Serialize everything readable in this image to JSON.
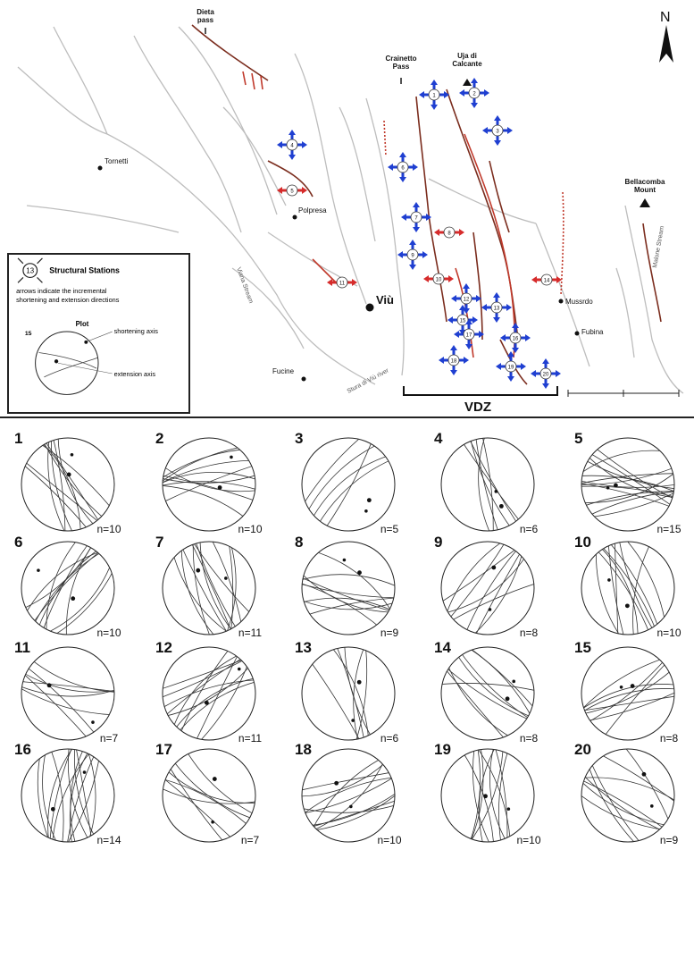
{
  "map": {
    "north_label": "N",
    "places": [
      {
        "id": "dieta",
        "name": "Dieta\npass"
      },
      {
        "id": "crainetto",
        "name": "Crainetto\nPass"
      },
      {
        "id": "uja",
        "name": "Uja di\nCalcante"
      },
      {
        "id": "tornetti",
        "name": "Tornetti"
      },
      {
        "id": "polpresa",
        "name": "Polpresa"
      },
      {
        "id": "viu",
        "name": "Viù"
      },
      {
        "id": "fucine",
        "name": "Fucine"
      },
      {
        "id": "mussrdo",
        "name": "Mussrdo"
      },
      {
        "id": "fubina",
        "name": "Fubina"
      },
      {
        "id": "bellacomba",
        "name": "Bellacomba\nMount"
      }
    ],
    "river_labels": [
      "Viana Stream",
      "Stura di Viù river",
      "Malone Stream"
    ],
    "vdz_label": "VDZ"
  },
  "legend": {
    "station_symbol": "13",
    "title": "Structural Stations",
    "description_line1": "arrows indicate the incremental",
    "description_line2": "shortening and extension directions",
    "plot_title": "Plot",
    "plot_number": "15",
    "shortening_label": "shortening axis",
    "extension_label": "extension axis"
  },
  "stations": [
    {
      "id": "1",
      "n": "n=10"
    },
    {
      "id": "2",
      "n": "n=10"
    },
    {
      "id": "3",
      "n": "n=5"
    },
    {
      "id": "4",
      "n": "n=6"
    },
    {
      "id": "5",
      "n": "n=15"
    },
    {
      "id": "6",
      "n": "n=10"
    },
    {
      "id": "7",
      "n": "n=11"
    },
    {
      "id": "8",
      "n": "n=9"
    },
    {
      "id": "9",
      "n": "n=8"
    },
    {
      "id": "10",
      "n": "n=10"
    },
    {
      "id": "11",
      "n": "n=7"
    },
    {
      "id": "12",
      "n": "n=11"
    },
    {
      "id": "13",
      "n": "n=6"
    },
    {
      "id": "14",
      "n": "n=8"
    },
    {
      "id": "15",
      "n": "n=8"
    },
    {
      "id": "16",
      "n": "n=14"
    },
    {
      "id": "17",
      "n": "n=7"
    },
    {
      "id": "18",
      "n": "n=10"
    },
    {
      "id": "19",
      "n": "n=10"
    },
    {
      "id": "20",
      "n": "n=9"
    }
  ],
  "colors": {
    "fault_red": "#c0392b",
    "fault_brown": "#7b2d1e",
    "arrow_blue": "#1f3fd1",
    "arrow_red": "#d62b2b",
    "river_gray": "#b9b9b9",
    "line_dark": "#222222"
  }
}
